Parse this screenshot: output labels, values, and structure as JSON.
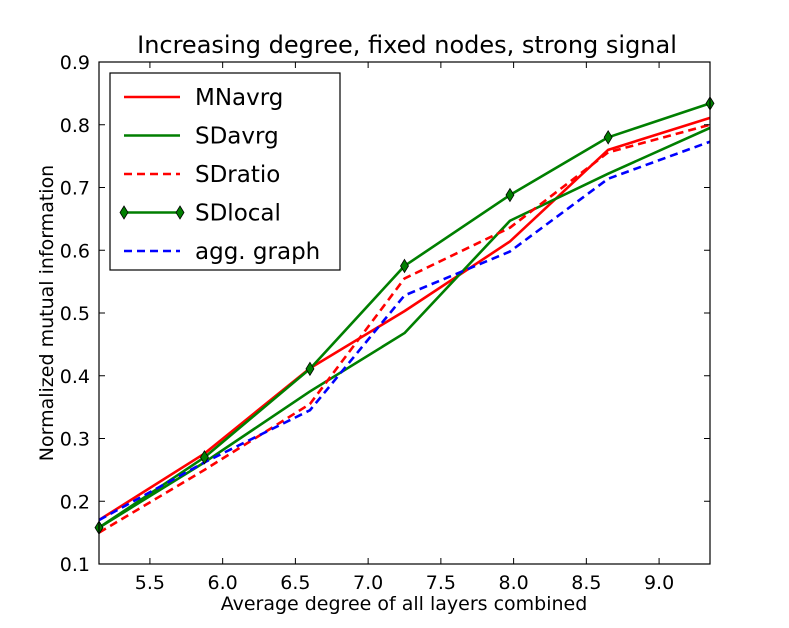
{
  "chart_data": {
    "type": "line",
    "title": "Increasing degree, fixed nodes, strong signal",
    "xlabel": "Average degree of all layers combined",
    "ylabel": "Normalized mutual information",
    "xlim": [
      5.15,
      9.35
    ],
    "ylim": [
      0.1,
      0.9
    ],
    "xticks": [
      "5.5",
      "6.0",
      "6.5",
      "7.0",
      "7.5",
      "8.0",
      "8.5",
      "9.0"
    ],
    "xtick_values": [
      5.5,
      6.0,
      6.5,
      7.0,
      7.5,
      8.0,
      8.5,
      9.0
    ],
    "yticks": [
      "0.1",
      "0.2",
      "0.3",
      "0.4",
      "0.5",
      "0.6",
      "0.7",
      "0.8",
      "0.9"
    ],
    "ytick_values": [
      0.1,
      0.2,
      0.3,
      0.4,
      0.5,
      0.6,
      0.7,
      0.8,
      0.9
    ],
    "grid": false,
    "legend_position": "top-left",
    "x": [
      5.15,
      5.875,
      6.6,
      7.25,
      7.975,
      8.65,
      9.35
    ],
    "series": [
      {
        "name": "MNavrg",
        "color": "#ff0000",
        "style": "solid",
        "marker": "none",
        "values": [
          0.17,
          0.276,
          0.412,
          0.503,
          0.614,
          0.76,
          0.811
        ]
      },
      {
        "name": "SDavrg",
        "color": "#007f00",
        "style": "solid",
        "marker": "none",
        "values": [
          0.158,
          0.262,
          0.375,
          0.468,
          0.647,
          0.722,
          0.795
        ]
      },
      {
        "name": "SDratio",
        "color": "#ff0000",
        "style": "dashed",
        "marker": "none",
        "values": [
          0.15,
          0.25,
          0.355,
          0.555,
          0.636,
          0.756,
          0.8
        ]
      },
      {
        "name": "SDlocal",
        "color": "#007f00",
        "style": "solid",
        "marker": "diamond",
        "values": [
          0.158,
          0.27,
          0.411,
          0.575,
          0.688,
          0.78,
          0.834
        ]
      },
      {
        "name": "agg. graph",
        "color": "#0000ff",
        "style": "dashed",
        "marker": "none",
        "values": [
          0.17,
          0.262,
          0.345,
          0.528,
          0.598,
          0.714,
          0.773
        ]
      }
    ]
  }
}
